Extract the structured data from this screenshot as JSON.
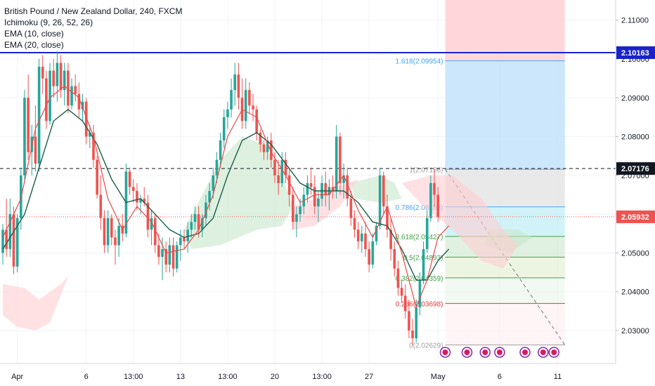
{
  "legend": {
    "title": "British Pound / New Zealand Dollar, 240, FXCM",
    "ichimoku": "Ichimoku (9, 26, 52, 26)",
    "ema10": "EMA (10, close)",
    "ema20": "EMA (20, close)"
  },
  "colors": {
    "up": "#26a69a",
    "down": "#ef5350",
    "ema10": "#e84a4a",
    "ema20": "#1b5e4a",
    "cloud_green": "#c8e6c9",
    "cloud_red": "#ffcdd2",
    "resistance_line": "#1a23c9",
    "fib_blue": "#42a5f5",
    "fib_green": "#43a047",
    "fib_red": "#e53935"
  },
  "chart_data": {
    "type": "candlestick",
    "symbol": "British Pound / New Zealand Dollar",
    "interval": "240",
    "source": "FXCM",
    "y_axis": {
      "ticks": [
        2.11,
        2.1,
        2.09,
        2.08,
        2.07,
        2.06,
        2.05,
        2.04,
        2.03
      ],
      "tick_labels": [
        "2.11000",
        "2.10000",
        "2.09000",
        "2.08000",
        "2.07000",
        "2.06000",
        "2.05000",
        "2.04000",
        "2.03000"
      ],
      "range": [
        2.0215,
        2.1152
      ]
    },
    "x_axis": {
      "tick_labels": [
        "Apr",
        "6",
        "13:00",
        "13",
        "13:00",
        "20",
        "13:00",
        "27",
        "May",
        "6",
        "11"
      ],
      "tick_bars": [
        4,
        23,
        36,
        49,
        62,
        75,
        88,
        101,
        120,
        137,
        153
      ]
    },
    "price_labels": [
      {
        "value": 2.10163,
        "label": "2.10163",
        "style": "resistance"
      },
      {
        "value": 2.07176,
        "label": "2.07176",
        "style": "dashed"
      },
      {
        "value": 2.05932,
        "label": "2.05932",
        "style": "current"
      }
    ],
    "fibonacci": {
      "start_bar": 122,
      "end_bar": 155,
      "levels": [
        {
          "ratio": "1.618",
          "value": 2.09954,
          "label": "1.618(2.09954)",
          "color": "#42a5f5"
        },
        {
          "ratio": "1",
          "value": 2.07156,
          "label": "1(2.07156)",
          "color": "#9e9e9e"
        },
        {
          "ratio": "0.786",
          "value": 2.06188,
          "label": "0.786(2.06188)",
          "color": "#42a5f5"
        },
        {
          "ratio": "0.618",
          "value": 2.05427,
          "label": "0.618(2.05427)",
          "color": "#43a047"
        },
        {
          "ratio": "0.5",
          "value": 2.04893,
          "label": "0.5(2.04893)",
          "color": "#43a047"
        },
        {
          "ratio": "0.382",
          "value": 2.04359,
          "label": "0.382(2.04359)",
          "color": "#43a047"
        },
        {
          "ratio": "0.236",
          "value": 2.03698,
          "label": "0.236(2.03698)",
          "color": "#e53935"
        },
        {
          "ratio": "0",
          "value": 2.02629,
          "label": "0(2.02629)",
          "color": "#9e9e9e"
        }
      ]
    },
    "candles": [
      [
        2.05,
        2.0575,
        2.047,
        2.056
      ],
      [
        2.056,
        2.064,
        2.049,
        2.051
      ],
      [
        2.051,
        2.064,
        2.049,
        2.06
      ],
      [
        2.06,
        2.062,
        2.0445,
        2.0465
      ],
      [
        2.0465,
        2.06,
        2.045,
        2.059
      ],
      [
        2.059,
        2.072,
        2.056,
        2.07
      ],
      [
        2.07,
        2.092,
        2.068,
        2.09
      ],
      [
        2.09,
        2.096,
        2.074,
        2.076
      ],
      [
        2.076,
        2.083,
        2.07,
        2.08
      ],
      [
        2.08,
        2.088,
        2.071,
        2.073
      ],
      [
        2.073,
        2.1,
        2.071,
        2.098
      ],
      [
        2.098,
        2.101,
        2.091,
        2.095
      ],
      [
        2.095,
        2.097,
        2.082,
        2.084
      ],
      [
        2.084,
        2.099,
        2.083,
        2.097
      ],
      [
        2.097,
        2.1,
        2.09,
        2.093
      ],
      [
        2.093,
        2.102,
        2.089,
        2.099
      ],
      [
        2.099,
        2.101,
        2.09,
        2.092
      ],
      [
        2.092,
        2.099,
        2.088,
        2.097
      ],
      [
        2.097,
        2.099,
        2.086,
        2.088
      ],
      [
        2.088,
        2.095,
        2.087,
        2.093
      ],
      [
        2.093,
        2.096,
        2.089,
        2.091
      ],
      [
        2.091,
        2.094,
        2.085,
        2.087
      ],
      [
        2.087,
        2.091,
        2.084,
        2.089
      ],
      [
        2.089,
        2.09,
        2.078,
        2.08
      ],
      [
        2.08,
        2.083,
        2.077,
        2.081
      ],
      [
        2.081,
        2.083,
        2.072,
        2.074
      ],
      [
        2.074,
        2.075,
        2.064,
        2.065
      ],
      [
        2.065,
        2.07,
        2.056,
        2.059
      ],
      [
        2.059,
        2.061,
        2.05,
        2.052
      ],
      [
        2.052,
        2.061,
        2.05,
        2.059
      ],
      [
        2.059,
        2.06,
        2.052,
        2.054
      ],
      [
        2.054,
        2.056,
        2.047,
        2.052
      ],
      [
        2.052,
        2.059,
        2.049,
        2.057
      ],
      [
        2.057,
        2.06,
        2.053,
        2.055
      ],
      [
        2.055,
        2.073,
        2.054,
        2.071
      ],
      [
        2.071,
        2.072,
        2.065,
        2.067
      ],
      [
        2.067,
        2.069,
        2.063,
        2.066
      ],
      [
        2.066,
        2.068,
        2.061,
        2.063
      ],
      [
        2.063,
        2.065,
        2.06,
        2.064
      ],
      [
        2.064,
        2.067,
        2.062,
        2.063
      ],
      [
        2.063,
        2.065,
        2.054,
        2.056
      ],
      [
        2.056,
        2.061,
        2.052,
        2.059
      ],
      [
        2.059,
        2.06,
        2.05,
        2.052
      ],
      [
        2.052,
        2.055,
        2.047,
        2.049
      ],
      [
        2.049,
        2.054,
        2.043,
        2.051
      ],
      [
        2.051,
        2.053,
        2.045,
        2.047
      ],
      [
        2.047,
        2.054,
        2.045,
        2.052
      ],
      [
        2.052,
        2.054,
        2.044,
        2.046
      ],
      [
        2.046,
        2.053,
        2.045,
        2.052
      ],
      [
        2.052,
        2.056,
        2.048,
        2.054
      ],
      [
        2.054,
        2.056,
        2.051,
        2.053
      ],
      [
        2.053,
        2.058,
        2.05,
        2.056
      ],
      [
        2.056,
        2.06,
        2.054,
        2.058
      ],
      [
        2.058,
        2.062,
        2.056,
        2.06
      ],
      [
        2.06,
        2.062,
        2.054,
        2.056
      ],
      [
        2.056,
        2.06,
        2.054,
        2.059
      ],
      [
        2.059,
        2.065,
        2.057,
        2.063
      ],
      [
        2.063,
        2.068,
        2.061,
        2.066
      ],
      [
        2.066,
        2.072,
        2.064,
        2.07
      ],
      [
        2.07,
        2.076,
        2.068,
        2.074
      ],
      [
        2.074,
        2.081,
        2.072,
        2.079
      ],
      [
        2.079,
        2.087,
        2.077,
        2.085
      ],
      [
        2.085,
        2.089,
        2.082,
        2.087
      ],
      [
        2.087,
        2.095,
        2.085,
        2.092
      ],
      [
        2.092,
        2.099,
        2.088,
        2.096
      ],
      [
        2.096,
        2.099,
        2.087,
        2.09
      ],
      [
        2.09,
        2.095,
        2.082,
        2.084
      ],
      [
        2.084,
        2.095,
        2.082,
        2.092
      ],
      [
        2.092,
        2.094,
        2.086,
        2.088
      ],
      [
        2.088,
        2.091,
        2.084,
        2.087
      ],
      [
        2.087,
        2.088,
        2.079,
        2.081
      ],
      [
        2.081,
        2.082,
        2.076,
        2.078
      ],
      [
        2.078,
        2.079,
        2.074,
        2.076
      ],
      [
        2.076,
        2.08,
        2.074,
        2.079
      ],
      [
        2.079,
        2.081,
        2.072,
        2.074
      ],
      [
        2.074,
        2.076,
        2.068,
        2.07
      ],
      [
        2.07,
        2.074,
        2.065,
        2.068
      ],
      [
        2.068,
        2.076,
        2.067,
        2.074
      ],
      [
        2.074,
        2.076,
        2.068,
        2.07
      ],
      [
        2.07,
        2.072,
        2.062,
        2.065
      ],
      [
        2.065,
        2.067,
        2.056,
        2.058
      ],
      [
        2.058,
        2.062,
        2.054,
        2.06
      ],
      [
        2.06,
        2.064,
        2.058,
        2.062
      ],
      [
        2.062,
        2.067,
        2.06,
        2.065
      ],
      [
        2.065,
        2.07,
        2.063,
        2.068
      ],
      [
        2.068,
        2.072,
        2.065,
        2.067
      ],
      [
        2.067,
        2.07,
        2.06,
        2.062
      ],
      [
        2.062,
        2.066,
        2.058,
        2.064
      ],
      [
        2.064,
        2.07,
        2.062,
        2.068
      ],
      [
        2.068,
        2.071,
        2.062,
        2.065
      ],
      [
        2.065,
        2.069,
        2.061,
        2.067
      ],
      [
        2.067,
        2.07,
        2.064,
        2.066
      ],
      [
        2.066,
        2.083,
        2.064,
        2.08
      ],
      [
        2.08,
        2.081,
        2.065,
        2.068
      ],
      [
        2.068,
        2.073,
        2.064,
        2.07
      ],
      [
        2.07,
        2.072,
        2.062,
        2.064
      ],
      [
        2.064,
        2.066,
        2.057,
        2.059
      ],
      [
        2.059,
        2.061,
        2.054,
        2.056
      ],
      [
        2.056,
        2.058,
        2.051,
        2.053
      ],
      [
        2.053,
        2.057,
        2.05,
        2.055
      ],
      [
        2.055,
        2.058,
        2.049,
        2.051
      ],
      [
        2.051,
        2.053,
        2.045,
        2.047
      ],
      [
        2.047,
        2.055,
        2.046,
        2.053
      ],
      [
        2.053,
        2.058,
        2.052,
        2.057
      ],
      [
        2.057,
        2.072,
        2.056,
        2.07
      ],
      [
        2.07,
        2.071,
        2.06,
        2.062
      ],
      [
        2.062,
        2.065,
        2.054,
        2.056
      ],
      [
        2.056,
        2.059,
        2.048,
        2.051
      ],
      [
        2.051,
        2.053,
        2.044,
        2.046
      ],
      [
        2.046,
        2.048,
        2.039,
        2.041
      ],
      [
        2.041,
        2.043,
        2.037,
        2.039
      ],
      [
        2.039,
        2.042,
        2.033,
        2.035
      ],
      [
        2.035,
        2.038,
        2.028,
        2.03
      ],
      [
        2.03,
        2.033,
        2.0263,
        2.028
      ],
      [
        2.028,
        2.038,
        2.027,
        2.036
      ],
      [
        2.036,
        2.045,
        2.034,
        2.043
      ],
      [
        2.043,
        2.053,
        2.042,
        2.051
      ],
      [
        2.051,
        2.061,
        2.05,
        2.059
      ],
      [
        2.059,
        2.07,
        2.058,
        2.068
      ],
      [
        2.068,
        2.0716,
        2.062,
        2.065
      ],
      [
        2.065,
        2.067,
        2.058,
        2.0593
      ]
    ],
    "ema10": [
      [
        0,
        2.054
      ],
      [
        5,
        2.064
      ],
      [
        9,
        2.082
      ],
      [
        13,
        2.09
      ],
      [
        17,
        2.093
      ],
      [
        21,
        2.09
      ],
      [
        25,
        2.08
      ],
      [
        29,
        2.064
      ],
      [
        33,
        2.056
      ],
      [
        37,
        2.062
      ],
      [
        41,
        2.058
      ],
      [
        45,
        2.05
      ],
      [
        50,
        2.051
      ],
      [
        54,
        2.056
      ],
      [
        58,
        2.065
      ],
      [
        62,
        2.08
      ],
      [
        66,
        2.087
      ],
      [
        70,
        2.085
      ],
      [
        74,
        2.076
      ],
      [
        78,
        2.07
      ],
      [
        82,
        2.063
      ],
      [
        86,
        2.065
      ],
      [
        90,
        2.065
      ],
      [
        94,
        2.07
      ],
      [
        98,
        2.061
      ],
      [
        102,
        2.054
      ],
      [
        106,
        2.062
      ],
      [
        110,
        2.05
      ],
      [
        114,
        2.036
      ],
      [
        117,
        2.043
      ],
      [
        120,
        2.054
      ],
      [
        123,
        2.057
      ]
    ],
    "ema20": [
      [
        0,
        2.051
      ],
      [
        6,
        2.06
      ],
      [
        10,
        2.072
      ],
      [
        14,
        2.084
      ],
      [
        18,
        2.087
      ],
      [
        22,
        2.084
      ],
      [
        26,
        2.078
      ],
      [
        30,
        2.069
      ],
      [
        34,
        2.063
      ],
      [
        38,
        2.064
      ],
      [
        42,
        2.06
      ],
      [
        46,
        2.056
      ],
      [
        50,
        2.054
      ],
      [
        54,
        2.055
      ],
      [
        58,
        2.059
      ],
      [
        62,
        2.07
      ],
      [
        66,
        2.079
      ],
      [
        70,
        2.081
      ],
      [
        74,
        2.078
      ],
      [
        78,
        2.073
      ],
      [
        82,
        2.068
      ],
      [
        86,
        2.066
      ],
      [
        90,
        2.066
      ],
      [
        94,
        2.066
      ],
      [
        98,
        2.063
      ],
      [
        102,
        2.058
      ],
      [
        106,
        2.057
      ],
      [
        110,
        2.051
      ],
      [
        114,
        2.043
      ],
      [
        117,
        2.043
      ],
      [
        120,
        2.048
      ],
      [
        123,
        2.051
      ]
    ],
    "cloud_green": [
      [
        [
          50,
          2.056
        ],
        [
          60,
          2.074
        ],
        [
          66,
          2.08
        ],
        [
          72,
          2.078
        ],
        [
          77,
          2.07
        ],
        [
          80,
          2.062
        ],
        [
          77,
          2.057
        ],
        [
          70,
          2.056
        ],
        [
          60,
          2.052
        ],
        [
          52,
          2.051
        ]
      ],
      [
        [
          96,
          2.068
        ],
        [
          104,
          2.07
        ],
        [
          108,
          2.068
        ],
        [
          110,
          2.064
        ],
        [
          104,
          2.063
        ],
        [
          97,
          2.064
        ]
      ],
      [
        [
          134,
          2.056
        ],
        [
          142,
          2.056
        ],
        [
          146,
          2.054
        ],
        [
          140,
          2.05
        ],
        [
          133,
          2.052
        ]
      ]
    ],
    "cloud_red": [
      [
        [
          0,
          2.042
        ],
        [
          6,
          2.041
        ],
        [
          10,
          2.038
        ],
        [
          16,
          2.042
        ],
        [
          18,
          2.044
        ],
        [
          13,
          2.032
        ],
        [
          9,
          2.03
        ],
        [
          4,
          2.031
        ],
        [
          0,
          2.034
        ]
      ],
      [
        [
          80,
          2.062
        ],
        [
          86,
          2.064
        ],
        [
          92,
          2.067
        ],
        [
          98,
          2.069
        ],
        [
          93,
          2.062
        ],
        [
          86,
          2.057
        ],
        [
          80,
          2.056
        ]
      ],
      [
        [
          110,
          2.068
        ],
        [
          118,
          2.07
        ],
        [
          124,
          2.07
        ],
        [
          132,
          2.064
        ],
        [
          138,
          2.056
        ],
        [
          142,
          2.052
        ],
        [
          138,
          2.046
        ],
        [
          132,
          2.048
        ],
        [
          124,
          2.056
        ],
        [
          116,
          2.062
        ]
      ]
    ]
  }
}
